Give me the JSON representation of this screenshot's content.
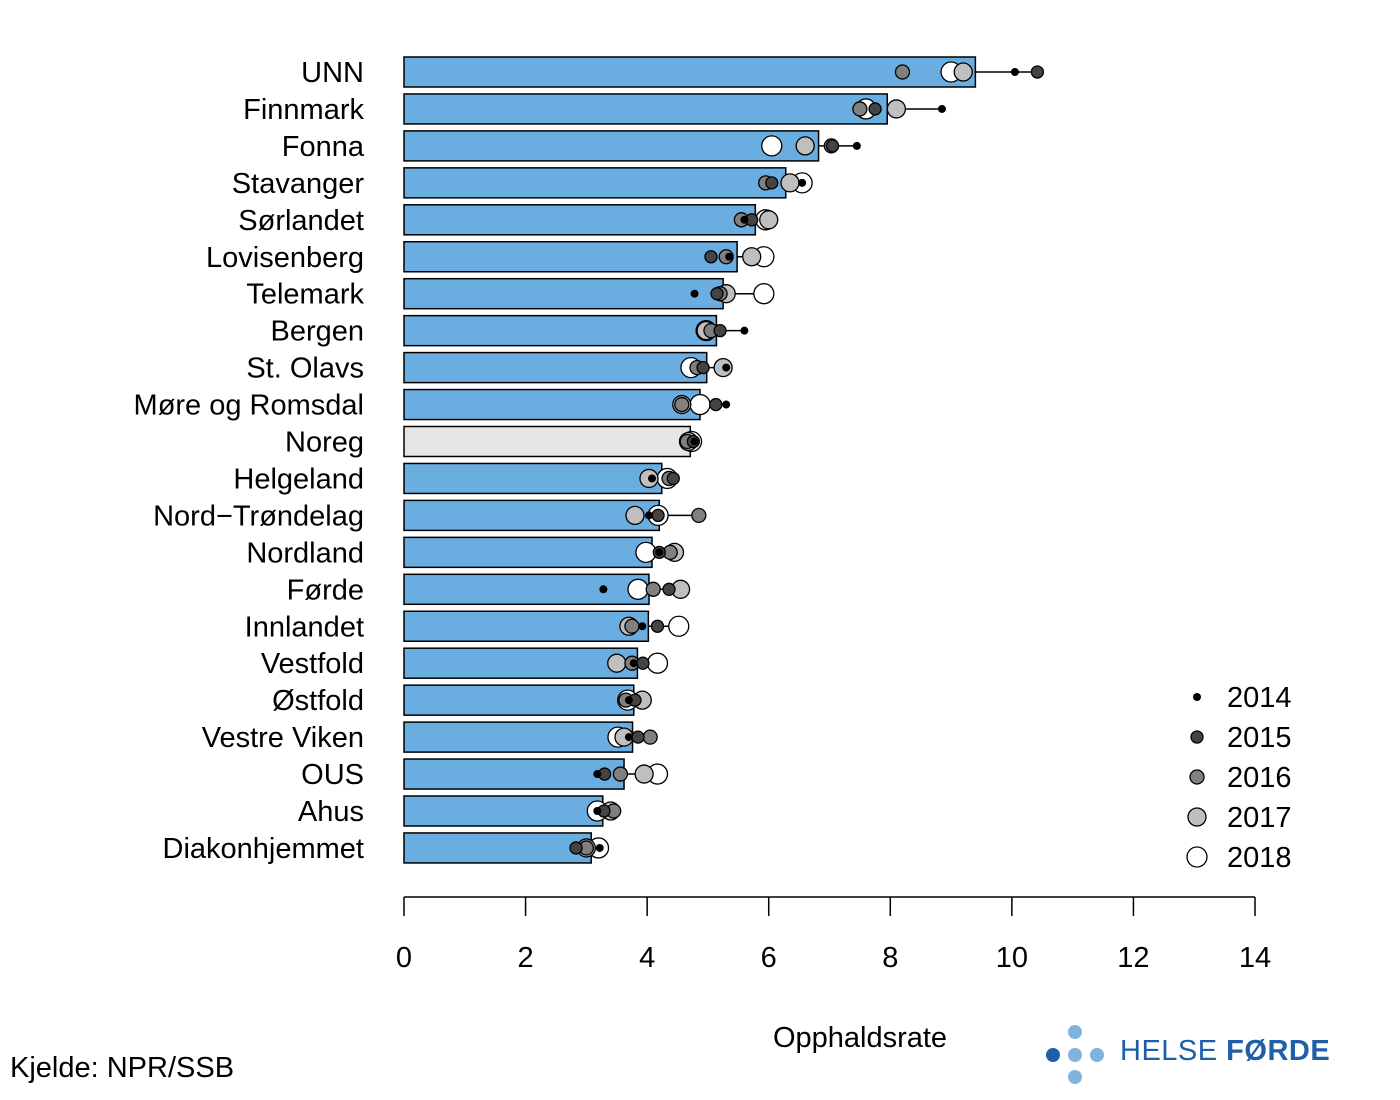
{
  "chart_data": {
    "type": "bar",
    "xlabel": "Opphaldsrate",
    "xlim": [
      0,
      14
    ],
    "xticks": [
      0,
      2,
      4,
      6,
      8,
      10,
      12,
      14
    ],
    "categories": [
      "UNN",
      "Finnmark",
      "Fonna",
      "Stavanger",
      "Sørlandet",
      "Lovisenberg",
      "Telemark",
      "Bergen",
      "St. Olavs",
      "Møre og Romsdal",
      "Noreg",
      "Helgeland",
      "Nord−Trøndelag",
      "Nordland",
      "Førde",
      "Innlandet",
      "Vestfold",
      "Østfold",
      "Vestre Viken",
      "OUS",
      "Ahus",
      "Diakonhjemmet"
    ],
    "highlight_category": "Noreg",
    "bar_color": "#6aade0",
    "highlight_color": "#e5e5e5",
    "values": [
      9.4,
      7.95,
      6.82,
      6.28,
      5.78,
      5.48,
      5.25,
      5.14,
      4.98,
      4.87,
      4.71,
      4.24,
      4.2,
      4.08,
      4.03,
      4.02,
      3.84,
      3.78,
      3.76,
      3.62,
      3.27,
      3.08
    ],
    "series": [
      {
        "name": "2014",
        "values": [
          10.05,
          8.85,
          7.45,
          6.55,
          5.6,
          5.35,
          4.78,
          5.6,
          5.3,
          5.3,
          4.78,
          4.08,
          4.03,
          4.2,
          3.28,
          3.92,
          3.78,
          3.7,
          3.7,
          3.18,
          3.18,
          3.22
        ],
        "fill": "#000000",
        "r": 4
      },
      {
        "name": "2015",
        "values": [
          10.42,
          7.75,
          7.05,
          6.05,
          5.72,
          5.05,
          5.15,
          5.2,
          4.92,
          5.13,
          4.76,
          4.43,
          4.18,
          4.2,
          4.36,
          4.17,
          3.93,
          3.8,
          3.85,
          3.3,
          3.29,
          2.83
        ],
        "fill": "#444444",
        "r": 6
      },
      {
        "name": "2016",
        "values": [
          8.2,
          7.5,
          7.03,
          5.95,
          5.55,
          5.3,
          5.2,
          5.05,
          4.82,
          4.57,
          4.66,
          4.36,
          4.85,
          4.38,
          4.1,
          3.75,
          3.75,
          3.65,
          4.05,
          3.56,
          3.45,
          3.0
        ],
        "fill": "#808080",
        "r": 7
      },
      {
        "name": "2017",
        "values": [
          9.2,
          8.1,
          6.6,
          6.35,
          6.0,
          5.72,
          5.3,
          4.97,
          5.25,
          4.57,
          4.68,
          4.03,
          3.8,
          4.45,
          4.55,
          3.7,
          3.5,
          3.92,
          3.62,
          3.95,
          3.4,
          3.0
        ],
        "fill": "#bfbfbf",
        "r": 9
      },
      {
        "name": "2018",
        "values": [
          9.0,
          7.6,
          6.05,
          6.55,
          5.95,
          5.92,
          5.92,
          4.97,
          4.72,
          4.87,
          4.73,
          4.33,
          4.18,
          3.98,
          3.85,
          4.52,
          4.17,
          3.68,
          3.52,
          4.17,
          3.18,
          3.2
        ],
        "fill": "#ffffff",
        "r": 10
      }
    ],
    "legend_placement": "bottom-right"
  },
  "source": "Kjelde: NPR/SSB",
  "logo": {
    "text_regular": "HELSE ",
    "text_bold": "FØRDE",
    "dot_dark": "#1f5fa8",
    "dot_light": "#7fb3e0"
  }
}
